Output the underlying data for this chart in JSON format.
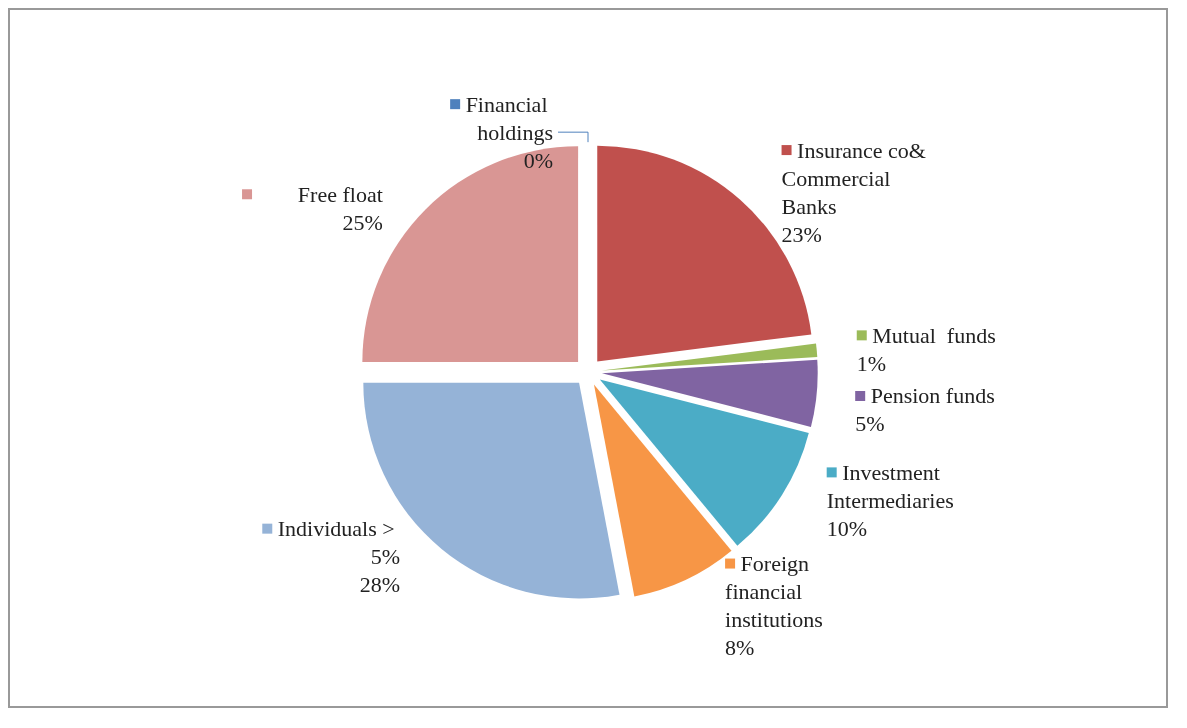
{
  "chart_data": {
    "type": "pie",
    "categories": [
      "Financial holdings",
      "Insurance co& Commercial Banks",
      "Mutual  funds",
      "Pension funds",
      "Investment Intermediaries",
      "Foreign financial institutions",
      "Individuals > 5%",
      "Free float"
    ],
    "values": [
      0,
      23,
      1,
      5,
      10,
      8,
      28,
      25
    ],
    "colors": [
      "#4f81bd",
      "#c0504d",
      "#9bbb59",
      "#8064a2",
      "#4bacc6",
      "#f79646",
      "#95b3d7",
      "#d99694"
    ],
    "value_labels": [
      "0%",
      "23%",
      "1%",
      "5%",
      "10%",
      "8%",
      "28%",
      "25%"
    ],
    "legend": "right"
  }
}
